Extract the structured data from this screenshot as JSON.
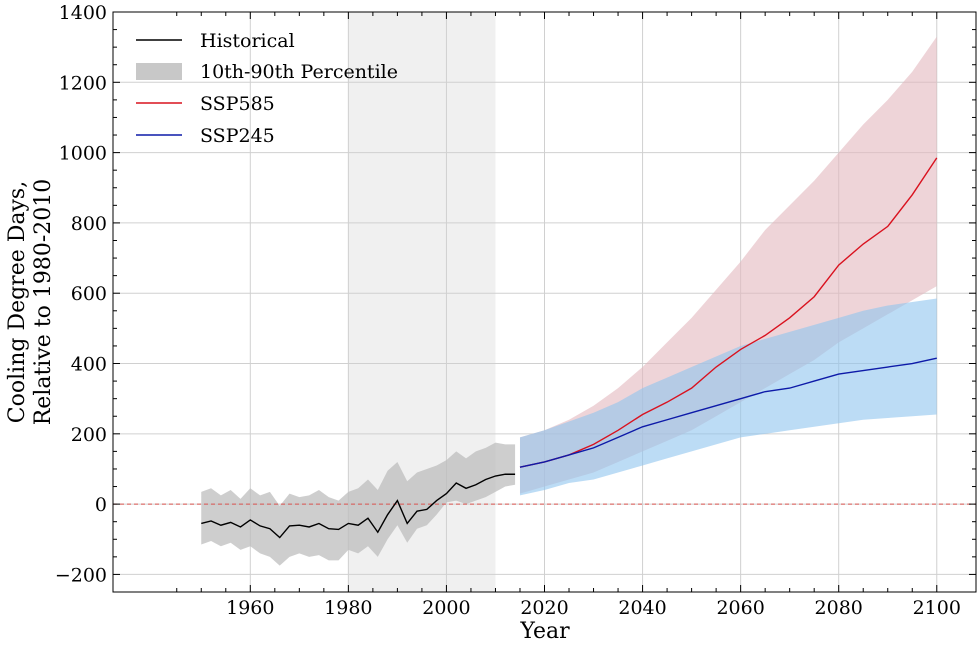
{
  "chart_data": {
    "type": "line",
    "title": "",
    "xlabel": "Year",
    "ylabel_line1": "Cooling Degree Days,",
    "ylabel_line2": "Relative to 1980-2010",
    "xlim": [
      1932,
      2108
    ],
    "ylim": [
      -250,
      1400
    ],
    "xticks": [
      1960,
      1980,
      2000,
      2020,
      2040,
      2060,
      2080,
      2100
    ],
    "xtick_labels": [
      "1960",
      "1980",
      "2000",
      "2020",
      "2040",
      "2060",
      "2080",
      "2100"
    ],
    "yticks": [
      -200,
      0,
      200,
      400,
      600,
      800,
      1000,
      1200,
      1400
    ],
    "ytick_labels": [
      "−200",
      "0",
      "200",
      "400",
      "600",
      "800",
      "1000",
      "1200",
      "1400"
    ],
    "grid": true,
    "legend_position": "top-left",
    "baseline_period": [
      1980,
      2010
    ],
    "reference_line_y": 0,
    "legend": [
      "Historical",
      "10th-90th Percentile",
      "SSP585",
      "SSP245"
    ],
    "colors": {
      "historical": "#000000",
      "historical_band": "#bdbdbd",
      "ssp585": "#d9121f",
      "ssp585_band": "#e3b7be",
      "ssp245": "#0d1aa8",
      "ssp245_band": "#90c4ee",
      "baseline_shade": "#f0f0f0",
      "zero_line": "#d9534f",
      "grid": "#d0d0d0"
    },
    "series": [
      {
        "name": "Historical",
        "years": [
          1950,
          1952,
          1954,
          1956,
          1958,
          1960,
          1962,
          1964,
          1966,
          1968,
          1970,
          1972,
          1974,
          1976,
          1978,
          1980,
          1982,
          1984,
          1986,
          1988,
          1990,
          1992,
          1994,
          1996,
          1998,
          2000,
          2002,
          2004,
          2006,
          2008,
          2010,
          2012,
          2014
        ],
        "values": [
          -55,
          -48,
          -60,
          -52,
          -65,
          -45,
          -62,
          -70,
          -95,
          -62,
          -60,
          -65,
          -55,
          -70,
          -72,
          -55,
          -60,
          -40,
          -80,
          -30,
          10,
          -55,
          -20,
          -15,
          10,
          30,
          60,
          45,
          55,
          70,
          80,
          85,
          85
        ],
        "p10": [
          -115,
          -105,
          -120,
          -110,
          -130,
          -120,
          -140,
          -150,
          -175,
          -150,
          -140,
          -150,
          -145,
          -160,
          -160,
          -130,
          -140,
          -120,
          -150,
          -100,
          -60,
          -110,
          -70,
          -60,
          -30,
          5,
          10,
          0,
          10,
          20,
          35,
          50,
          55
        ],
        "p90": [
          35,
          45,
          25,
          40,
          15,
          45,
          25,
          35,
          -5,
          30,
          20,
          25,
          40,
          20,
          10,
          35,
          45,
          70,
          40,
          95,
          120,
          65,
          90,
          100,
          110,
          125,
          150,
          130,
          150,
          160,
          175,
          170,
          170
        ]
      },
      {
        "name": "SSP585",
        "years": [
          2015,
          2020,
          2025,
          2030,
          2035,
          2040,
          2045,
          2050,
          2055,
          2060,
          2065,
          2070,
          2075,
          2080,
          2085,
          2090,
          2095,
          2100
        ],
        "values": [
          105,
          120,
          140,
          170,
          210,
          255,
          290,
          330,
          390,
          440,
          480,
          530,
          590,
          680,
          740,
          790,
          880,
          985
        ],
        "p10": [
          30,
          50,
          70,
          90,
          120,
          150,
          180,
          210,
          250,
          290,
          330,
          370,
          410,
          460,
          500,
          540,
          580,
          620
        ],
        "p90": [
          190,
          210,
          240,
          280,
          330,
          390,
          460,
          530,
          610,
          690,
          780,
          850,
          920,
          1000,
          1080,
          1150,
          1230,
          1330
        ]
      },
      {
        "name": "SSP245",
        "years": [
          2015,
          2020,
          2025,
          2030,
          2035,
          2040,
          2045,
          2050,
          2055,
          2060,
          2065,
          2070,
          2075,
          2080,
          2085,
          2090,
          2095,
          2100
        ],
        "values": [
          105,
          120,
          140,
          160,
          190,
          220,
          240,
          260,
          280,
          300,
          320,
          330,
          350,
          370,
          380,
          390,
          400,
          415
        ],
        "p10": [
          25,
          40,
          60,
          70,
          90,
          110,
          130,
          150,
          170,
          190,
          200,
          210,
          220,
          230,
          240,
          245,
          250,
          255
        ],
        "p90": [
          190,
          210,
          235,
          260,
          290,
          330,
          360,
          390,
          420,
          450,
          470,
          490,
          510,
          530,
          550,
          565,
          575,
          585
        ]
      }
    ]
  }
}
